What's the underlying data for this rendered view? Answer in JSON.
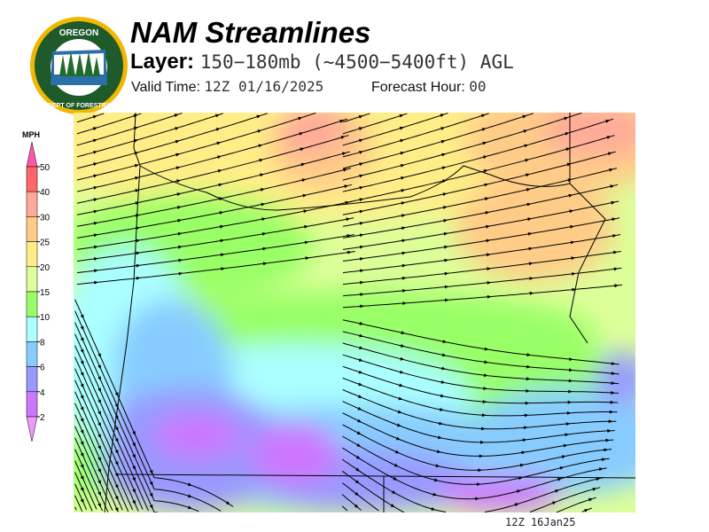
{
  "header": {
    "title": "NAM Streamlines",
    "layer_label": "Layer:",
    "layer_value": "150−180mb (~4500−5400ft) AGL",
    "valid_label": "Valid Time:",
    "valid_value": "12Z 01/16/2025",
    "forecast_label": "Forecast Hour:",
    "forecast_value": "00"
  },
  "logo": {
    "text_top": "OREGON",
    "text_bottom": "DEPARTMENT OF FORESTRY",
    "colors": {
      "ring": "#f2b705",
      "field": "#1f5a2a"
    }
  },
  "colorbar": {
    "unit": "MPH",
    "ticks": [
      "50",
      "40",
      "30",
      "25",
      "20",
      "15",
      "10",
      "8",
      "6",
      "4",
      "2"
    ],
    "colors": [
      "#ff55aa",
      "#ff6666",
      "#ffaa99",
      "#ffcc88",
      "#ffee88",
      "#ddff99",
      "#99ff66",
      "#aaffff",
      "#88ccff",
      "#9999ff",
      "#cc77ff",
      "#ee99ff"
    ]
  },
  "footer": {
    "stamp": "12Z 16Jan25"
  }
}
